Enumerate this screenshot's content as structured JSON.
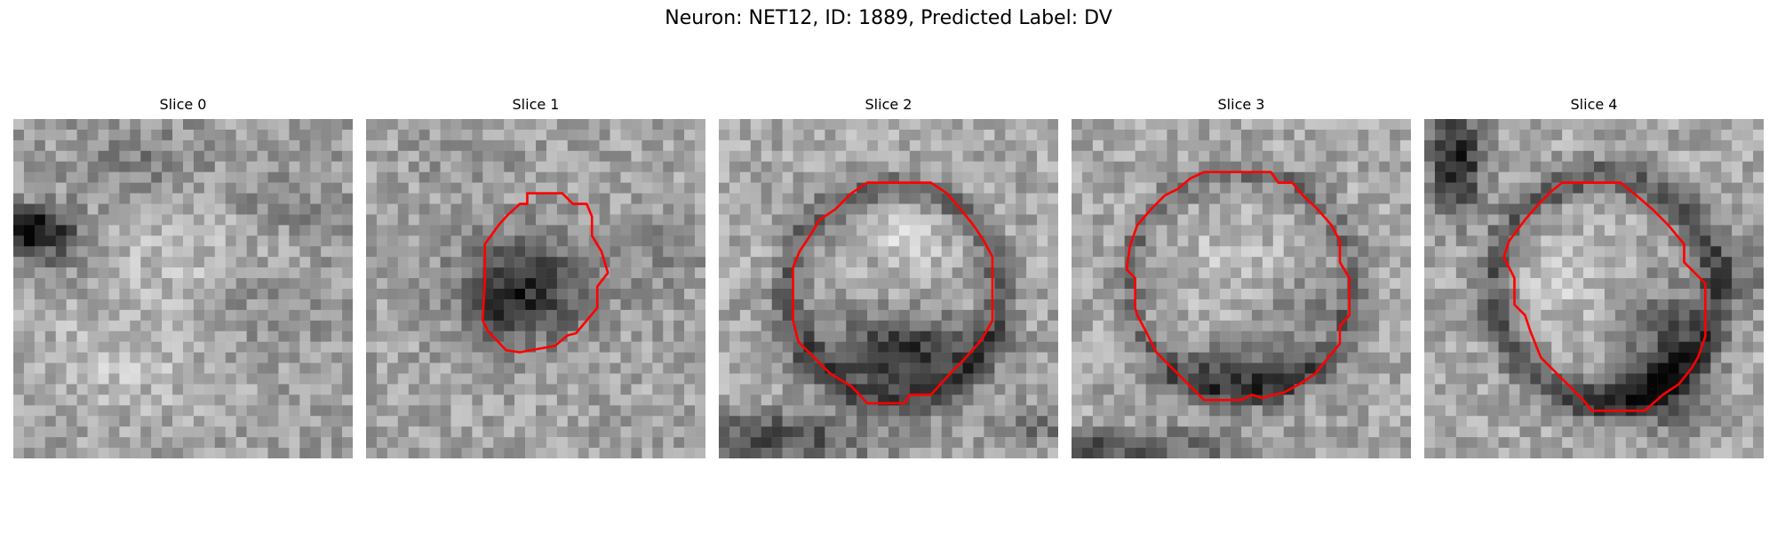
{
  "figure": {
    "title": "Neuron: NET12, ID: 1889, Predicted Label: DV"
  },
  "contour_color": "#ff0000",
  "slices": [
    {
      "label": "Slice 0"
    },
    {
      "label": "Slice 1"
    },
    {
      "label": "Slice 2"
    },
    {
      "label": "Slice 3"
    },
    {
      "label": "Slice 4"
    }
  ]
}
